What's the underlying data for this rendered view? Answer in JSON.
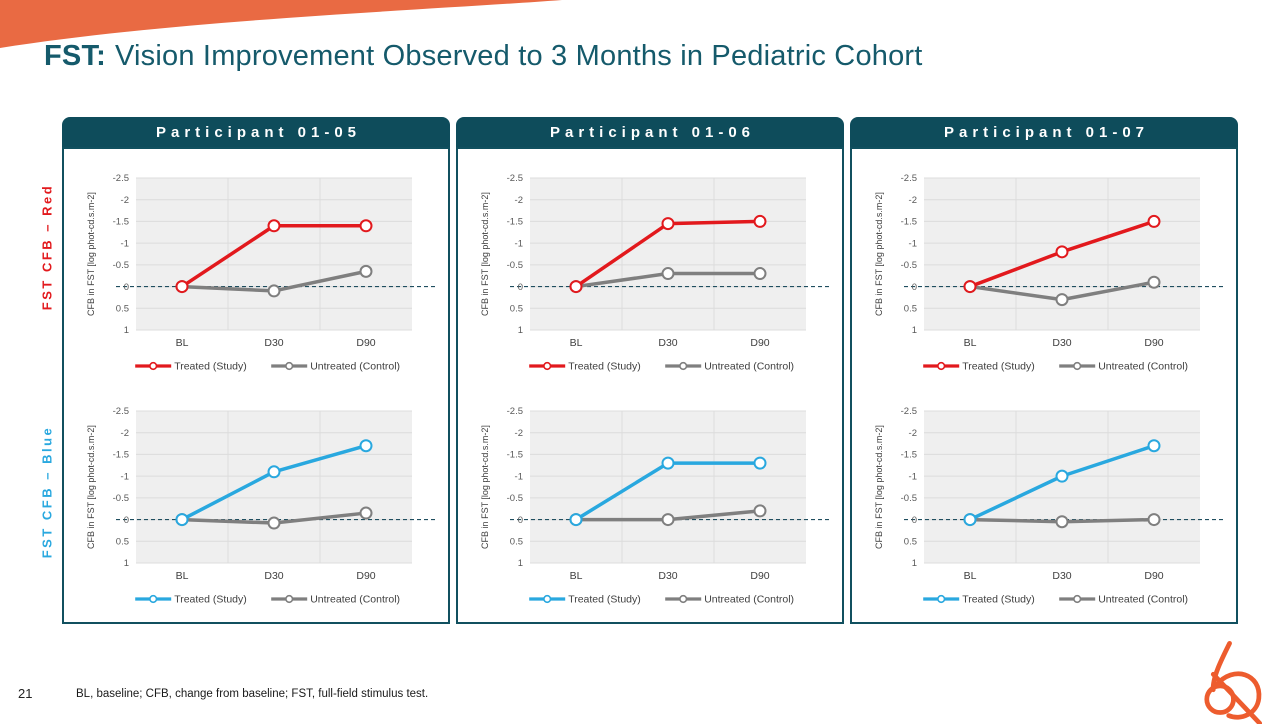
{
  "slide": {
    "title_prefix": "FST:",
    "title_rest": "Vision Improvement Observed to 3 Months in Pediatric Cohort",
    "page_number": "21",
    "footnote": "BL, baseline; CFB, change from baseline; FST, full-field stimulus test."
  },
  "colors": {
    "header_teal": "#0E4C5B",
    "title_teal": "#155A6B",
    "treated_red": "#E2191D",
    "treated_blue": "#29A8DF",
    "untreated_gray": "#7F7F7F",
    "corner_swoosh_orange": "#E96A43",
    "logo_orange": "#ED5C2E",
    "zero_line": "#1F4E5F",
    "plot_background": "#EFEFEF",
    "gridline": "#DCDCDC"
  },
  "row_labels": [
    {
      "label": "FST CFB – Red",
      "color": "#E2191D"
    },
    {
      "label": "FST CFB – Blue",
      "color": "#29A8DF"
    }
  ],
  "panels": [
    {
      "header": "Participant 01-05"
    },
    {
      "header": "Participant 01-06"
    },
    {
      "header": "Participant 01-07"
    }
  ],
  "icons": {
    "corner_swoosh": "orange-curved-corner-shape",
    "logo": "orange-swirl-logo"
  },
  "chart_data": [
    {
      "type": "line",
      "participant": "Participant 01-05",
      "stimulus": "FST CFB – Red",
      "ylabel": "CFB in FST [log phot-cd.s.m-2]",
      "categories": [
        "BL",
        "D30",
        "D90"
      ],
      "yticks": [
        -2.5,
        -2,
        -1.5,
        -1,
        -0.5,
        0,
        0.5,
        1
      ],
      "ylim": [
        -2.5,
        1
      ],
      "y_axis_inverted": true,
      "zero_reference_line": true,
      "grid": true,
      "legend_position": "bottom",
      "series": [
        {
          "name": "Treated (Study)",
          "color": "#E2191D",
          "values": [
            0,
            -1.4,
            -1.4
          ]
        },
        {
          "name": "Untreated (Control)",
          "color": "#7F7F7F",
          "values": [
            0,
            0.1,
            -0.35
          ]
        }
      ]
    },
    {
      "type": "line",
      "participant": "Participant 01-05",
      "stimulus": "FST CFB – Blue",
      "ylabel": "CFB in FST [log phot-cd.s.m-2]",
      "categories": [
        "BL",
        "D30",
        "D90"
      ],
      "yticks": [
        -2.5,
        -2,
        -1.5,
        -1,
        -0.5,
        0,
        0.5,
        1
      ],
      "ylim": [
        -2.5,
        1
      ],
      "y_axis_inverted": true,
      "zero_reference_line": true,
      "grid": true,
      "legend_position": "bottom",
      "series": [
        {
          "name": "Treated (Study)",
          "color": "#29A8DF",
          "values": [
            0,
            -1.1,
            -1.7
          ]
        },
        {
          "name": "Untreated (Control)",
          "color": "#7F7F7F",
          "values": [
            0,
            0.08,
            -0.15
          ]
        }
      ]
    },
    {
      "type": "line",
      "participant": "Participant 01-06",
      "stimulus": "FST CFB – Red",
      "ylabel": "CFB in FST [log phot-cd.s.m-2]",
      "categories": [
        "BL",
        "D30",
        "D90"
      ],
      "yticks": [
        -2.5,
        -2,
        -1.5,
        -1,
        -0.5,
        0,
        0.5,
        1
      ],
      "ylim": [
        -2.5,
        1
      ],
      "y_axis_inverted": true,
      "zero_reference_line": true,
      "grid": true,
      "legend_position": "bottom",
      "series": [
        {
          "name": "Treated (Study)",
          "color": "#E2191D",
          "values": [
            0,
            -1.45,
            -1.5
          ]
        },
        {
          "name": "Untreated (Control)",
          "color": "#7F7F7F",
          "values": [
            0,
            -0.3,
            -0.3
          ]
        }
      ]
    },
    {
      "type": "line",
      "participant": "Participant 01-06",
      "stimulus": "FST CFB – Blue",
      "ylabel": "CFB in FST [log phot-cd.s.m-2]",
      "categories": [
        "BL",
        "D30",
        "D90"
      ],
      "yticks": [
        -2.5,
        -2,
        -1.5,
        -1,
        -0.5,
        0,
        0.5,
        1
      ],
      "ylim": [
        -2.5,
        1
      ],
      "y_axis_inverted": true,
      "zero_reference_line": true,
      "grid": true,
      "legend_position": "bottom",
      "series": [
        {
          "name": "Treated (Study)",
          "color": "#29A8DF",
          "values": [
            0,
            -1.3,
            -1.3
          ]
        },
        {
          "name": "Untreated (Control)",
          "color": "#7F7F7F",
          "values": [
            0,
            0,
            -0.2
          ]
        }
      ]
    },
    {
      "type": "line",
      "participant": "Participant 01-07",
      "stimulus": "FST CFB – Red",
      "ylabel": "CFB in FST [log phot-cd.s.m-2]",
      "categories": [
        "BL",
        "D30",
        "D90"
      ],
      "yticks": [
        -2.5,
        -2,
        -1.5,
        -1,
        -0.5,
        0,
        0.5,
        1
      ],
      "ylim": [
        -2.5,
        1
      ],
      "y_axis_inverted": true,
      "zero_reference_line": true,
      "grid": true,
      "legend_position": "bottom",
      "series": [
        {
          "name": "Treated (Study)",
          "color": "#E2191D",
          "values": [
            0,
            -0.8,
            -1.5
          ]
        },
        {
          "name": "Untreated (Control)",
          "color": "#7F7F7F",
          "values": [
            0,
            0.3,
            -0.1
          ]
        }
      ]
    },
    {
      "type": "line",
      "participant": "Participant 01-07",
      "stimulus": "FST CFB – Blue",
      "ylabel": "CFB in FST [log phot-cd.s.m-2]",
      "categories": [
        "BL",
        "D30",
        "D90"
      ],
      "yticks": [
        -2.5,
        -2,
        -1.5,
        -1,
        -0.5,
        0,
        0.5,
        1
      ],
      "ylim": [
        -2.5,
        1
      ],
      "y_axis_inverted": true,
      "zero_reference_line": true,
      "grid": true,
      "legend_position": "bottom",
      "series": [
        {
          "name": "Treated (Study)",
          "color": "#29A8DF",
          "values": [
            0,
            -1.0,
            -1.7
          ]
        },
        {
          "name": "Untreated (Control)",
          "color": "#7F7F7F",
          "values": [
            0,
            0.05,
            0
          ]
        }
      ]
    }
  ]
}
